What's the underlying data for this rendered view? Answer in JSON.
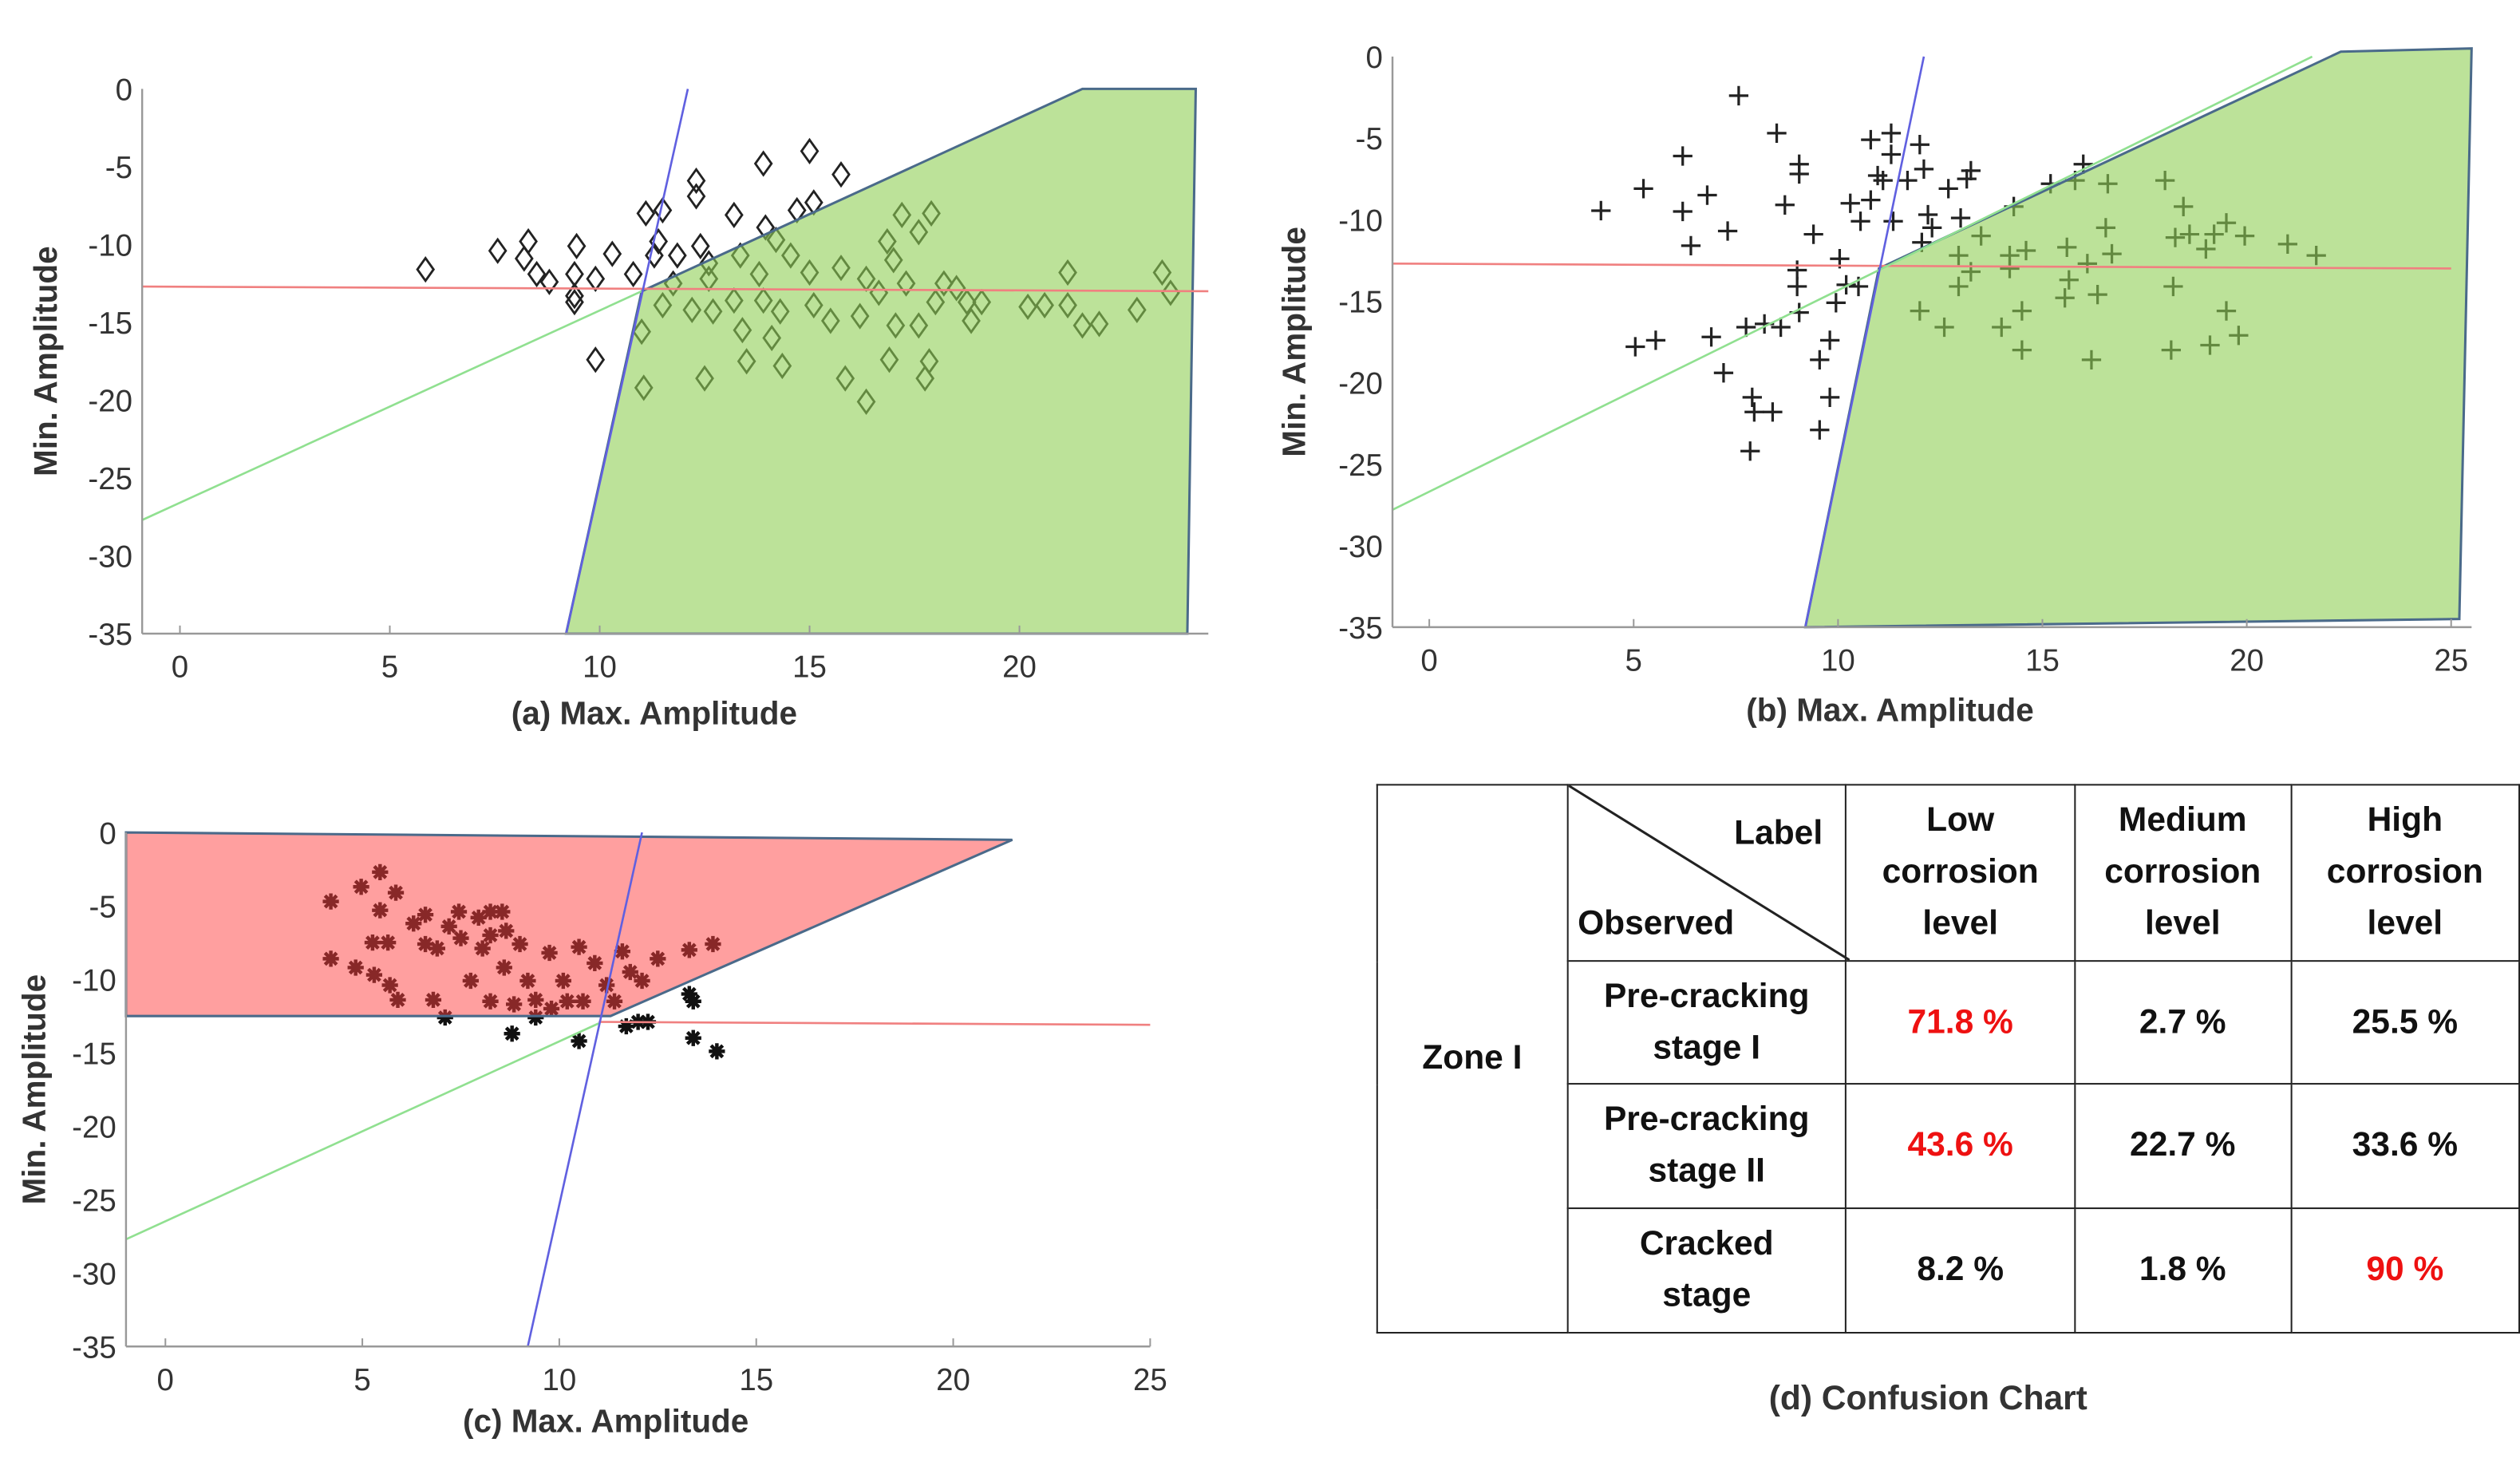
{
  "chart_data": [
    {
      "type": "scatter",
      "panel": "a",
      "xlabel": "(a) Max. Amplitude",
      "ylabel": "Min. Amplitude",
      "xlim": [
        -0.9,
        24.5
      ],
      "ylim": [
        -35,
        0
      ],
      "xticks": [
        0,
        5,
        10,
        15,
        20
      ],
      "yticks": [
        0,
        -5,
        -10,
        -15,
        -20,
        -25,
        -30,
        -35
      ],
      "marker": "diamond",
      "region": {
        "color": "#8fcf55",
        "vertices": [
          [
            9.2,
            -35
          ],
          [
            11,
            -13
          ],
          [
            21.5,
            0
          ],
          [
            24.2,
            0
          ],
          [
            24,
            -35
          ]
        ]
      },
      "lines": [
        {
          "color": "#f08080",
          "points": [
            [
              -0.9,
              -12.7
            ],
            [
              24.5,
              -13.0
            ]
          ]
        },
        {
          "color": "#90e090",
          "points": [
            [
              -0.9,
              -27.7
            ],
            [
              11,
              -13
            ]
          ]
        },
        {
          "color": "#6060e0",
          "points": [
            [
              9.2,
              -35
            ],
            [
              12.1,
              0
            ]
          ]
        }
      ],
      "points": [
        [
          5.85,
          -11.6
        ],
        [
          7.57,
          -10.4
        ],
        [
          8.3,
          -9.8
        ],
        [
          8.2,
          -10.9
        ],
        [
          8.5,
          -11.9
        ],
        [
          8.8,
          -12.4
        ],
        [
          9.4,
          -13.7
        ],
        [
          9.4,
          -13.3
        ],
        [
          9.4,
          -11.9
        ],
        [
          9.45,
          -10.1
        ],
        [
          9.9,
          -12.2
        ],
        [
          9.9,
          -17.4
        ],
        [
          10.3,
          -10.6
        ],
        [
          10.8,
          -11.9
        ],
        [
          11.1,
          -8
        ],
        [
          11.5,
          -7.8
        ],
        [
          11.3,
          -10.7
        ],
        [
          11.4,
          -9.8
        ],
        [
          11.85,
          -10.7
        ],
        [
          12.3,
          -5.9
        ],
        [
          12.3,
          -6.9
        ],
        [
          12.4,
          -10.1
        ],
        [
          12.6,
          -11.2
        ],
        [
          13.2,
          -8.1
        ],
        [
          13.9,
          -4.8
        ],
        [
          15,
          -4
        ],
        [
          15.75,
          -5.5
        ],
        [
          14.7,
          -7.8
        ],
        [
          15.1,
          -7.3
        ],
        [
          13.95,
          -8.9
        ],
        [
          14.2,
          -9.7
        ],
        [
          13.35,
          -10.7
        ],
        [
          11,
          -15.6
        ],
        [
          11.05,
          -19.2
        ],
        [
          11.5,
          -13.9
        ],
        [
          11.75,
          -12.5
        ],
        [
          12.2,
          -14.2
        ],
        [
          12.5,
          -18.6
        ],
        [
          12.6,
          -12.2
        ],
        [
          12.7,
          -14.3
        ],
        [
          13.2,
          -13.6
        ],
        [
          13.4,
          -15.5
        ],
        [
          13.5,
          -17.5
        ],
        [
          13.8,
          -11.9
        ],
        [
          13.9,
          -13.6
        ],
        [
          14.1,
          -16
        ],
        [
          14.3,
          -14.3
        ],
        [
          14.35,
          -17.8
        ],
        [
          14.55,
          -10.7
        ],
        [
          15,
          -11.8
        ],
        [
          15.1,
          -13.9
        ],
        [
          15.5,
          -14.9
        ],
        [
          15.75,
          -11.5
        ],
        [
          15.85,
          -18.6
        ],
        [
          16.2,
          -14.6
        ],
        [
          16.35,
          -12.2
        ],
        [
          16.35,
          -20.1
        ],
        [
          16.65,
          -13.1
        ],
        [
          16.85,
          -9.8
        ],
        [
          16.9,
          -17.4
        ],
        [
          17.05,
          -15.2
        ],
        [
          17,
          -11
        ],
        [
          17.2,
          -8.1
        ],
        [
          17.3,
          -12.5
        ],
        [
          17.6,
          -9.2
        ],
        [
          17.6,
          -15.2
        ],
        [
          17.75,
          -18.6
        ],
        [
          17.85,
          -17.5
        ],
        [
          17.9,
          -8
        ],
        [
          18,
          -13.7
        ],
        [
          18.2,
          -12.5
        ],
        [
          18.5,
          -12.8
        ],
        [
          18.75,
          -13.7
        ],
        [
          18.85,
          -14.9
        ],
        [
          19.1,
          -13.7
        ],
        [
          20.2,
          -14
        ],
        [
          20.6,
          -13.9
        ],
        [
          21.15,
          -11.8
        ],
        [
          21.15,
          -13.9
        ],
        [
          21.5,
          -15.2
        ],
        [
          21.9,
          -15.1
        ],
        [
          22.8,
          -14.2
        ],
        [
          23.4,
          -11.8
        ],
        [
          23.6,
          -13.1
        ]
      ]
    },
    {
      "type": "scatter",
      "panel": "b",
      "xlabel": "(b) Max. Amplitude",
      "ylabel": "Min. Amplitude",
      "xlim": [
        -0.9,
        25.5
      ],
      "ylim": [
        -35,
        0
      ],
      "xticks": [
        0,
        5,
        10,
        15,
        20,
        25
      ],
      "yticks": [
        0,
        -5,
        -10,
        -15,
        -20,
        -25,
        -30,
        -35
      ],
      "marker": "plus",
      "region": {
        "color": "#8fcf55",
        "vertices": [
          [
            9.2,
            -35
          ],
          [
            11,
            -13
          ],
          [
            22.3,
            0.3
          ],
          [
            25.5,
            0.5
          ],
          [
            25.2,
            -34.5
          ]
        ]
      },
      "lines": [
        {
          "color": "#f08080",
          "points": [
            [
              -0.9,
              -12.7
            ],
            [
              25,
              -13.0
            ]
          ]
        },
        {
          "color": "#90e090",
          "points": [
            [
              -0.9,
              -27.8
            ],
            [
              21.6,
              0
            ]
          ]
        },
        {
          "color": "#6060e0",
          "points": [
            [
              9.2,
              -35
            ],
            [
              12.1,
              0
            ]
          ]
        }
      ],
      "points": [
        [
          7.57,
          -2.4
        ],
        [
          4.2,
          -9.45
        ],
        [
          5.24,
          -8.1
        ],
        [
          6.2,
          -6.1
        ],
        [
          6.2,
          -9.5
        ],
        [
          6.4,
          -11.6
        ],
        [
          6.8,
          -8.5
        ],
        [
          7.3,
          -10.7
        ],
        [
          5.04,
          -17.8
        ],
        [
          5.54,
          -17.4
        ],
        [
          6.9,
          -17.2
        ],
        [
          7.2,
          -19.4
        ],
        [
          7.75,
          -16.6
        ],
        [
          7.9,
          -20.9
        ],
        [
          7.95,
          -21.8
        ],
        [
          7.85,
          -24.2
        ],
        [
          8.4,
          -21.8
        ],
        [
          8.2,
          -16.4
        ],
        [
          8.6,
          -16.6
        ],
        [
          8.5,
          -4.7
        ],
        [
          8.7,
          -9.1
        ],
        [
          9.05,
          -6.6
        ],
        [
          9.05,
          -7.2
        ],
        [
          9,
          -13.1
        ],
        [
          9,
          -14.1
        ],
        [
          9.05,
          -15.7
        ],
        [
          9.4,
          -10.9
        ],
        [
          9.55,
          -18.6
        ],
        [
          9.55,
          -22.9
        ],
        [
          9.8,
          -20.9
        ],
        [
          9.8,
          -17.4
        ],
        [
          9.95,
          -15.1
        ],
        [
          10.04,
          -12.4
        ],
        [
          10.2,
          -14
        ],
        [
          10.3,
          -9
        ],
        [
          10.55,
          -10.1
        ],
        [
          10.5,
          -14.1
        ],
        [
          10.8,
          -5.1
        ],
        [
          10.8,
          -8.8
        ],
        [
          10.97,
          -7.3
        ],
        [
          11.1,
          -7.6
        ],
        [
          11.3,
          -4.7
        ],
        [
          11.3,
          -6
        ],
        [
          11.35,
          -10.1
        ],
        [
          11.7,
          -7.6
        ],
        [
          12,
          -5.4
        ],
        [
          12.1,
          -6.9
        ],
        [
          12.2,
          -9.7
        ],
        [
          12.3,
          -10.5
        ],
        [
          12.05,
          -11.4
        ],
        [
          12,
          -15.6
        ],
        [
          12.6,
          -16.6
        ],
        [
          12.7,
          -8.1
        ],
        [
          12.95,
          -12.2
        ],
        [
          13,
          -9.9
        ],
        [
          13.15,
          -7.5
        ],
        [
          13.25,
          -7.0
        ],
        [
          12.95,
          -14.1
        ],
        [
          13.25,
          -13.2
        ],
        [
          13.5,
          -11
        ],
        [
          14,
          -16.6
        ],
        [
          14.2,
          -12.2
        ],
        [
          14.2,
          -13
        ],
        [
          14.3,
          -9.2
        ],
        [
          14.5,
          -15.6
        ],
        [
          14.5,
          -18
        ],
        [
          14.6,
          -11.9
        ],
        [
          15.2,
          -7.8
        ],
        [
          15.6,
          -11.7
        ],
        [
          15.65,
          -13.7
        ],
        [
          15.55,
          -14.8
        ],
        [
          15.8,
          -7.6
        ],
        [
          16,
          -6.6
        ],
        [
          16.1,
          -12.7
        ],
        [
          16.2,
          -18.6
        ],
        [
          16.35,
          -14.6
        ],
        [
          16.6,
          -7.8
        ],
        [
          16.55,
          -10.5
        ],
        [
          16.7,
          -12.1
        ],
        [
          18,
          -7.6
        ],
        [
          18.2,
          -14.1
        ],
        [
          18.15,
          -18
        ],
        [
          18.25,
          -11.1
        ],
        [
          18.45,
          -9.2
        ],
        [
          18.6,
          -10.9
        ],
        [
          19,
          -11.8
        ],
        [
          19.1,
          -17.7
        ],
        [
          19.2,
          -10.9
        ],
        [
          19.5,
          -15.6
        ],
        [
          19.5,
          -10.2
        ],
        [
          19.8,
          -17.1
        ],
        [
          19.95,
          -11
        ],
        [
          21,
          -11.5
        ],
        [
          21.7,
          -12.2
        ]
      ]
    },
    {
      "type": "scatter",
      "panel": "c",
      "xlabel": "(c)  Max. Amplitude",
      "ylabel": "Min. Amplitude",
      "xlim": [
        -1,
        25
      ],
      "ylim": [
        -35,
        0
      ],
      "xticks": [
        0,
        5,
        10,
        15,
        20,
        25
      ],
      "yticks": [
        0,
        -5,
        -10,
        -15,
        -20,
        -25,
        -30,
        -35
      ],
      "marker": "asterisk",
      "region": {
        "color": "#ff4040",
        "vertices": [
          [
            -1,
            0
          ],
          [
            21.5,
            -0.5
          ],
          [
            11.3,
            -12.5
          ],
          [
            -1,
            -12.5
          ]
        ]
      },
      "lines": [
        {
          "color": "#f08080",
          "points": [
            [
              11,
              -12.9
            ],
            [
              25,
              -13.1
            ]
          ]
        },
        {
          "color": "#90e090",
          "points": [
            [
              -1,
              -27.7
            ],
            [
              11,
              -13
            ]
          ]
        },
        {
          "color": "#6060e0",
          "points": [
            [
              9.2,
              -35
            ],
            [
              12.1,
              0
            ]
          ]
        }
      ],
      "points": [
        [
          5.45,
          -2.7
        ],
        [
          4.97,
          -3.7
        ],
        [
          5.85,
          -4.1
        ],
        [
          4.2,
          -4.7
        ],
        [
          5.45,
          -5.3
        ],
        [
          5.26,
          -7.5
        ],
        [
          5.65,
          -7.5
        ],
        [
          4.2,
          -8.6
        ],
        [
          4.83,
          -9.2
        ],
        [
          5.3,
          -9.7
        ],
        [
          5.7,
          -10.4
        ],
        [
          5.9,
          -11.4
        ],
        [
          6.3,
          -6.2
        ],
        [
          6.6,
          -5.6
        ],
        [
          6.6,
          -7.6
        ],
        [
          6.9,
          -7.9
        ],
        [
          6.8,
          -11.4
        ],
        [
          7.1,
          -12.6
        ],
        [
          7.2,
          -6.4
        ],
        [
          7.45,
          -5.4
        ],
        [
          7.5,
          -7.2
        ],
        [
          7.75,
          -10.1
        ],
        [
          8.05,
          -7.9
        ],
        [
          7.95,
          -5.8
        ],
        [
          8.25,
          -5.4
        ],
        [
          8.25,
          -7
        ],
        [
          8.25,
          -11.5
        ],
        [
          8.6,
          -9.2
        ],
        [
          8.55,
          -5.4
        ],
        [
          8.65,
          -6.7
        ],
        [
          8.85,
          -11.7
        ],
        [
          8.8,
          -13.7
        ],
        [
          9.0,
          -7.6
        ],
        [
          9.2,
          -10.1
        ],
        [
          9.4,
          -11.4
        ],
        [
          9.4,
          -12.6
        ],
        [
          9.75,
          -8.2
        ],
        [
          9.8,
          -12
        ],
        [
          10.1,
          -10.1
        ],
        [
          10.2,
          -11.5
        ],
        [
          10.5,
          -7.8
        ],
        [
          10.5,
          -14.2
        ],
        [
          10.6,
          -11.5
        ],
        [
          10.9,
          -8.9
        ],
        [
          11.2,
          -10.4
        ],
        [
          11.4,
          -11.5
        ],
        [
          11.6,
          -8.1
        ],
        [
          11.7,
          -13.2
        ],
        [
          11.8,
          -9.5
        ],
        [
          12,
          -12.9
        ],
        [
          12.1,
          -10.1
        ],
        [
          12.25,
          -12.9
        ],
        [
          12.5,
          -8.6
        ],
        [
          13.3,
          -8
        ],
        [
          13.9,
          -7.6
        ],
        [
          13.3,
          -11
        ],
        [
          13.4,
          -11.5
        ],
        [
          13.4,
          -14
        ],
        [
          14,
          -14.9
        ]
      ]
    }
  ],
  "confusion_chart": {
    "caption": "(d) Confusion Chart",
    "zone": "Zone I",
    "corner_label": "Label",
    "corner_observed": "Observed",
    "columns": [
      "Low corrosion level",
      "Medium corrosion level",
      "High corrosion level"
    ],
    "rows": [
      {
        "label": "Pre-cracking stage I",
        "values": [
          "71.8 %",
          "2.7 %",
          "25.5 %"
        ],
        "highlight": 0
      },
      {
        "label": "Pre-cracking stage II",
        "values": [
          "43.6 %",
          "22.7 %",
          "33.6 %"
        ],
        "highlight": 0
      },
      {
        "label": "Cracked stage",
        "values": [
          "8.2 %",
          "1.8 %",
          "90 %"
        ],
        "highlight": 2
      }
    ],
    "highlight_color": "#ee1111"
  }
}
